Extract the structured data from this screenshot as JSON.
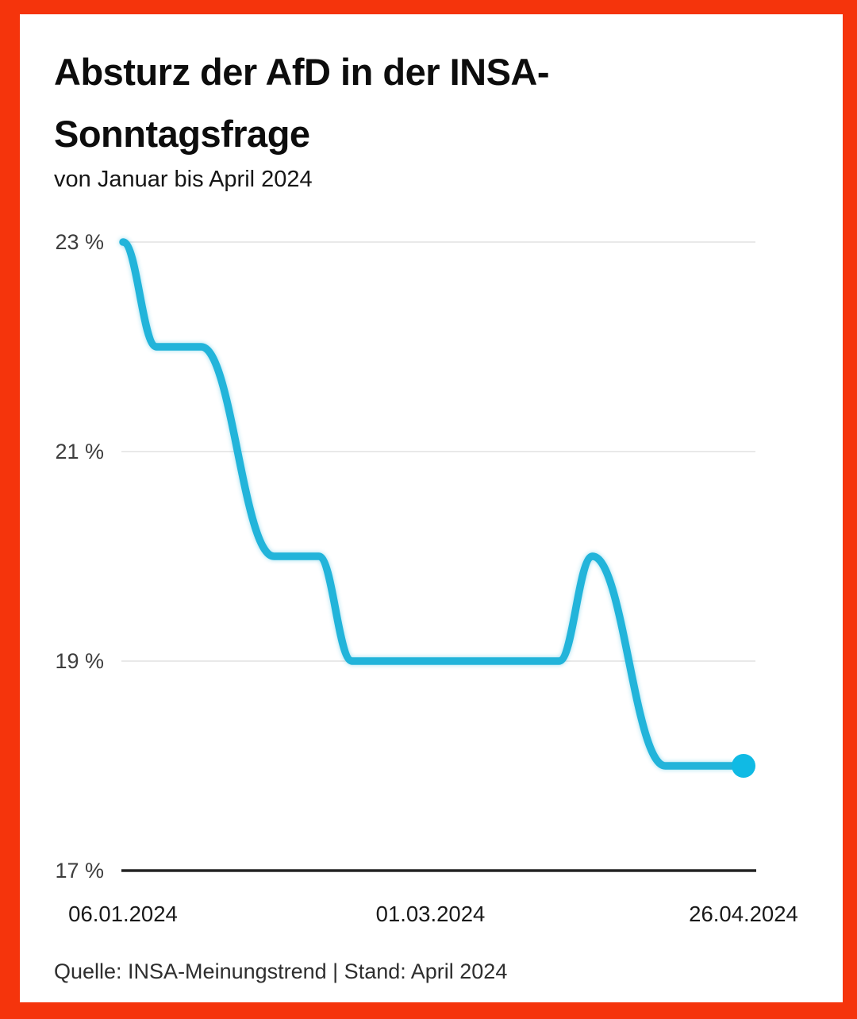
{
  "theme": {
    "frame_color": "#F5340C",
    "background": "#FFFFFF"
  },
  "header": {
    "title": "Absturz der AfD in der INSA-Sonntagsfrage",
    "title_lines": [
      "Absturz der AfD in der INSA-",
      "Sonntagsfrage"
    ],
    "subtitle": "von Januar bis April 2024"
  },
  "footer": {
    "source": "Quelle: INSA-Meinungstrend | Stand: April 2024"
  },
  "chart_data": {
    "type": "line",
    "title": "Absturz der AfD in der INSA-Sonntagsfrage",
    "subtitle": "von Januar bis April 2024",
    "series": [
      {
        "name": "AfD",
        "points": [
          {
            "day": 0,
            "value": 23.0
          },
          {
            "day": 6,
            "value": 22.0
          },
          {
            "day": 14,
            "value": 22.0
          },
          {
            "day": 27,
            "value": 20.0
          },
          {
            "day": 35,
            "value": 20.0
          },
          {
            "day": 41,
            "value": 19.0
          },
          {
            "day": 78,
            "value": 19.0
          },
          {
            "day": 84,
            "value": 20.0
          },
          {
            "day": 97,
            "value": 18.0
          },
          {
            "day": 111,
            "value": 18.0
          }
        ]
      }
    ],
    "x_ticks": [
      {
        "label": "06.01.2024",
        "day": 0
      },
      {
        "label": "01.03.2024",
        "day": 55
      },
      {
        "label": "26.04.2024",
        "day": 111
      }
    ],
    "y_ticks": [
      {
        "label": "23 %",
        "value": 23
      },
      {
        "label": "21 %",
        "value": 21
      },
      {
        "label": "19 %",
        "value": 19
      },
      {
        "label": "17 %",
        "value": 17
      }
    ],
    "xlim_days": [
      0,
      111
    ],
    "ylim": [
      17,
      23
    ],
    "grid": true,
    "legend": "none",
    "line_color": "#22B4DA",
    "dot_color": "#10BAE4",
    "grid_color": "#E9E9E9",
    "axis_color": "#232323"
  }
}
